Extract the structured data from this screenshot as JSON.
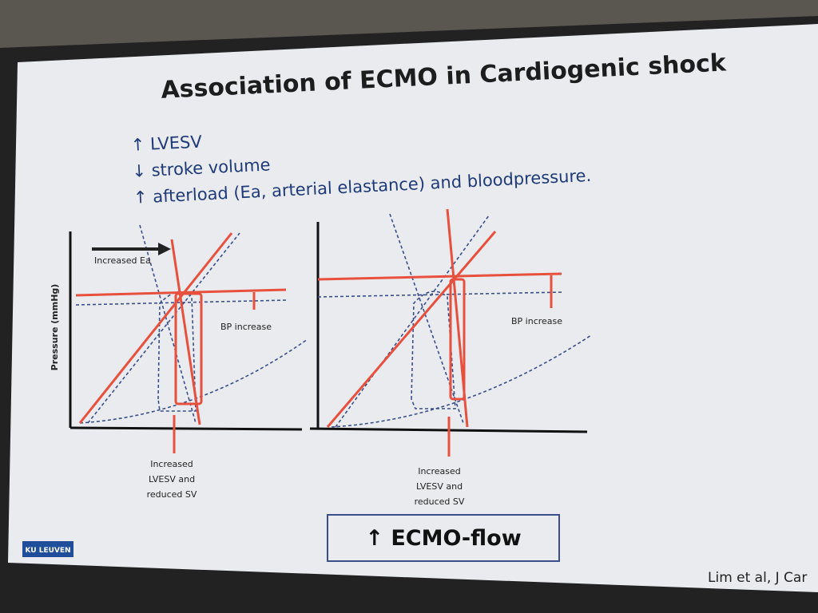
{
  "slide": {
    "title": "Association of ECMO in Cardiogenic shock",
    "bullets": [
      "↑ LVESV",
      "↓ stroke volume",
      "↑ afterload (Ea, arterial elastance) and bloodpressure."
    ],
    "left_diagram": {
      "y_axis_label": "Pressure (mmHg)",
      "ea_label": "Increased Ea",
      "bp_label": "BP increase",
      "lvesv_label": [
        "Increased",
        "LVESV and",
        "reduced SV"
      ]
    },
    "right_diagram": {
      "bp_label": "BP increase",
      "lvesv_label": [
        "Increased",
        "LVESV and",
        "reduced SV"
      ]
    },
    "ecmo_box": "↑ ECMO-flow",
    "logo": "KU LEUVEN",
    "citation": "Lim et al, J Car"
  }
}
